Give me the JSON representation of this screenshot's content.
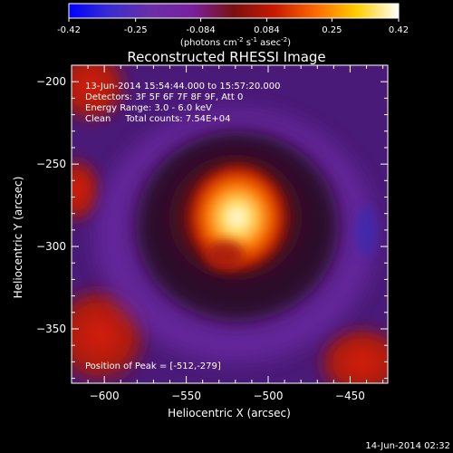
{
  "colorbar": {
    "ticks": [
      "-0.42",
      "-0.25",
      "-0.084",
      "0.084",
      "0.25",
      "0.42"
    ],
    "tick_values": [
      -0.42,
      -0.25,
      -0.084,
      0.084,
      0.25,
      0.42
    ],
    "unit": "(photons cm",
    "unit_sup1": "-2",
    "unit_mid": " s",
    "unit_sup2": "-1",
    "unit_end": " asec",
    "unit_sup3": "-2",
    "unit_close": ")",
    "range": [
      -0.42,
      0.42
    ],
    "colors": [
      "#0000ff",
      "#3b2dcf",
      "#6a2fa8",
      "#7a1fa0",
      "#7a1010",
      "#c81a00",
      "#ff6a00",
      "#ffd000",
      "#ffffff"
    ]
  },
  "chart_data": {
    "type": "heatmap",
    "title": "Reconstructed RHESSI Image",
    "xlabel": "Heliocentric X (arcsec)",
    "ylabel": "Heliocentric Y (arcsec)",
    "xlim": [
      -620,
      -427
    ],
    "ylim": [
      -383,
      -190
    ],
    "x_ticks": [
      -600,
      -550,
      -500,
      -450
    ],
    "x_tick_labels": [
      "−600",
      "−550",
      "−500",
      "−450"
    ],
    "y_ticks": [
      -200,
      -250,
      -300,
      -350
    ],
    "y_tick_labels": [
      "−200",
      "−250",
      "−300",
      "−350"
    ],
    "peak": [
      -512,
      -279
    ],
    "info_lines": [
      "13-Jun-2014 15:54:44.000 to 15:57:20.000",
      "Detectors: 3F 5F 6F 7F 8F 9F, Att 0",
      "Energy Range: 3.0 - 6.0 keV",
      "Clean     Total counts: 7.54E+04"
    ],
    "peak_label": "Position of Peak = [-512,-279]"
  },
  "footer": {
    "timestamp": "14-Jun-2014 02:32"
  }
}
